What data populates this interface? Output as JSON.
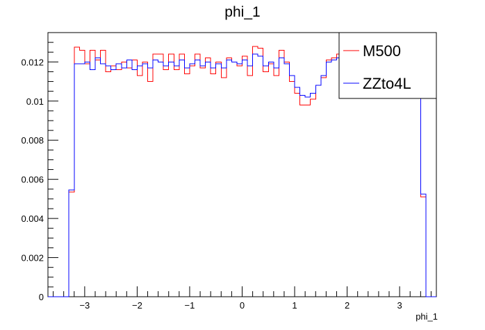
{
  "chart_data": {
    "type": "line",
    "title": "phi_1",
    "xlabel": "phi_1",
    "ylabel": "",
    "xlim": [
      -3.7,
      3.7
    ],
    "ylim": [
      0,
      0.0135
    ],
    "x_ticks": [
      -3,
      -2,
      -1,
      0,
      1,
      2,
      3
    ],
    "x_tick_labels": [
      "−3",
      "−2",
      "−1",
      "0",
      "1",
      "2",
      "3"
    ],
    "y_ticks": [
      0,
      0.002,
      0.004,
      0.006,
      0.008,
      0.01,
      0.012
    ],
    "y_tick_labels": [
      "0",
      "0.002",
      "0.004",
      "0.006",
      "0.008",
      "0.01",
      "0.012"
    ],
    "legend_position": "top-right",
    "bin_edges_range": [
      -3.7,
      3.7
    ],
    "bin_count": 74,
    "series": [
      {
        "name": "M500",
        "color": "#ff0000",
        "values": [
          0,
          0,
          0,
          0,
          0.00535,
          0.01275,
          0.0126,
          0.0119,
          0.0126,
          0.0121,
          0.0126,
          0.0115,
          0.0118,
          0.0116,
          0.012,
          0.0117,
          0.0121,
          0.0113,
          0.012,
          0.011,
          0.0124,
          0.0124,
          0.0116,
          0.0124,
          0.0116,
          0.0124,
          0.0114,
          0.0118,
          0.0124,
          0.0117,
          0.0122,
          0.0114,
          0.012,
          0.0112,
          0.0122,
          0.012,
          0.0118,
          0.0123,
          0.0113,
          0.0128,
          0.0127,
          0.0115,
          0.0119,
          0.0113,
          0.0126,
          0.012,
          0.011,
          0.0104,
          0.0098,
          0.0098,
          0.0101,
          0.0108,
          0.0112,
          0.0121,
          0.0122,
          0.0124,
          0.012,
          0.0115,
          0.0122,
          0.0121,
          0.0102,
          0.0122,
          0.012,
          0.0121,
          0.0118,
          0.012,
          0.0121,
          0.0118,
          0.0123,
          0.0111,
          0.0114,
          0.0051,
          0,
          0
        ]
      },
      {
        "name": "ZZto4L",
        "color": "#0000ff",
        "values": [
          0,
          0,
          0,
          0,
          0.00545,
          0.0119,
          0.0119,
          0.012,
          0.0116,
          0.0122,
          0.0119,
          0.0118,
          0.0116,
          0.0119,
          0.0117,
          0.0121,
          0.0116,
          0.0118,
          0.0119,
          0.0117,
          0.0121,
          0.012,
          0.0118,
          0.012,
          0.0118,
          0.0121,
          0.0117,
          0.0119,
          0.0121,
          0.0118,
          0.012,
          0.0117,
          0.0119,
          0.0117,
          0.0121,
          0.012,
          0.0119,
          0.0121,
          0.0118,
          0.0124,
          0.0123,
          0.0118,
          0.012,
          0.0117,
          0.0122,
          0.0119,
          0.0113,
          0.0107,
          0.0103,
          0.0102,
          0.0104,
          0.0108,
          0.0113,
          0.012,
          0.0121,
          0.0122,
          0.012,
          0.0119,
          0.012,
          0.0121,
          0.0118,
          0.012,
          0.0119,
          0.012,
          0.0119,
          0.012,
          0.0121,
          0.0119,
          0.0121,
          0.0118,
          0.0119,
          0.00525,
          0,
          0
        ]
      }
    ]
  }
}
